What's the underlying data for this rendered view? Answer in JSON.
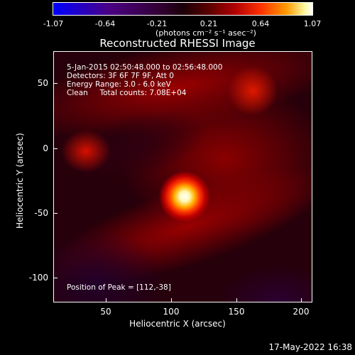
{
  "colorbar": {
    "ticks": [
      "-1.07",
      "-0.64",
      "-0.21",
      "0.21",
      "0.64",
      "1.07"
    ],
    "units": "(photons cm⁻² s⁻¹ asec⁻²)",
    "range": [
      -1.07,
      1.07
    ]
  },
  "plot": {
    "title": "Reconstructed RHESSI Image",
    "info": {
      "time": "5-Jan-2015 02:50:48.000 to 02:56:48.000",
      "detectors": "Detectors: 3F 6F 7F 9F, Att 0",
      "energy": "Energy Range: 3.0 - 6.0 keV",
      "method": "Clean     Total counts: 7.08E+04",
      "peak": "Position of Peak = [112,-38]"
    },
    "xlabel": "Heliocentric X (arcsec)",
    "ylabel": "Heliocentric Y (arcsec)",
    "xticks": [
      "50",
      "100",
      "150",
      "200"
    ],
    "yticks": [
      "50",
      "0",
      "-50",
      "-100"
    ],
    "peak_color": "#ffffff",
    "map_color": "#b00000"
  },
  "timestamp": "17-May-2022 16:38"
}
